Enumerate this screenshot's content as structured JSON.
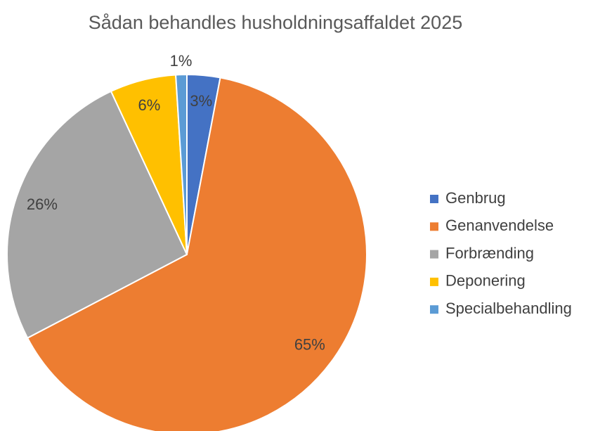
{
  "chart_data": {
    "type": "pie",
    "title": "Sådan behandles husholdningsaffaldet 2025",
    "categories": [
      "Genbrug",
      "Genanvendelse",
      "Forbrænding",
      "Deponering",
      "Specialbehandling"
    ],
    "values": [
      3,
      65,
      26,
      6,
      1
    ],
    "value_labels": [
      "3%",
      "65%",
      "26%",
      "6%",
      "1%"
    ],
    "colors": [
      "#4472c4",
      "#ed7d31",
      "#a5a5a5",
      "#ffc000",
      "#5b9bd5"
    ],
    "legend": "right"
  }
}
